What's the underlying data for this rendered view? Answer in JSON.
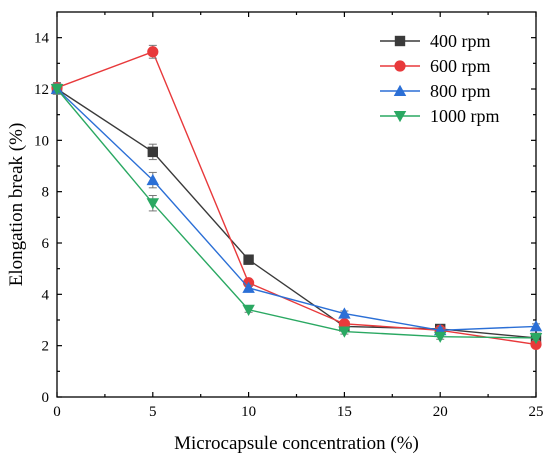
{
  "chart_data": {
    "type": "line",
    "xlabel": "Microcapsule concentration (%)",
    "ylabel": "Elongation break (%)",
    "xlim": [
      0,
      25
    ],
    "ylim": [
      0,
      15
    ],
    "xticks": [
      0,
      5,
      10,
      15,
      20,
      25
    ],
    "yticks": [
      0,
      2,
      4,
      6,
      8,
      10,
      12,
      14
    ],
    "grid": false,
    "legend_position": "top-right",
    "x": [
      0,
      5,
      10,
      15,
      20,
      25
    ],
    "series": [
      {
        "name": "400 rpm",
        "color": "#3a3a3a",
        "marker": "square",
        "values": [
          12.0,
          9.55,
          5.35,
          2.75,
          2.65,
          2.3
        ],
        "errors": [
          0.2,
          0.3,
          0.1,
          0.1,
          0.1,
          0.1
        ]
      },
      {
        "name": "600 rpm",
        "color": "#e8393b",
        "marker": "circle",
        "values": [
          12.05,
          13.45,
          4.45,
          2.85,
          2.6,
          2.05
        ],
        "errors": [
          0.2,
          0.25,
          0.1,
          0.1,
          0.1,
          0.1
        ]
      },
      {
        "name": "800 rpm",
        "color": "#2b6fd6",
        "marker": "triangle-up",
        "values": [
          12.0,
          8.45,
          4.25,
          3.25,
          2.6,
          2.75
        ],
        "errors": [
          0.2,
          0.3,
          0.1,
          0.1,
          0.1,
          0.1
        ]
      },
      {
        "name": "1000 rpm",
        "color": "#2aa862",
        "marker": "triangle-down",
        "values": [
          12.0,
          7.55,
          3.4,
          2.55,
          2.35,
          2.3
        ],
        "errors": [
          0.2,
          0.3,
          0.1,
          0.1,
          0.1,
          0.1
        ]
      }
    ]
  }
}
